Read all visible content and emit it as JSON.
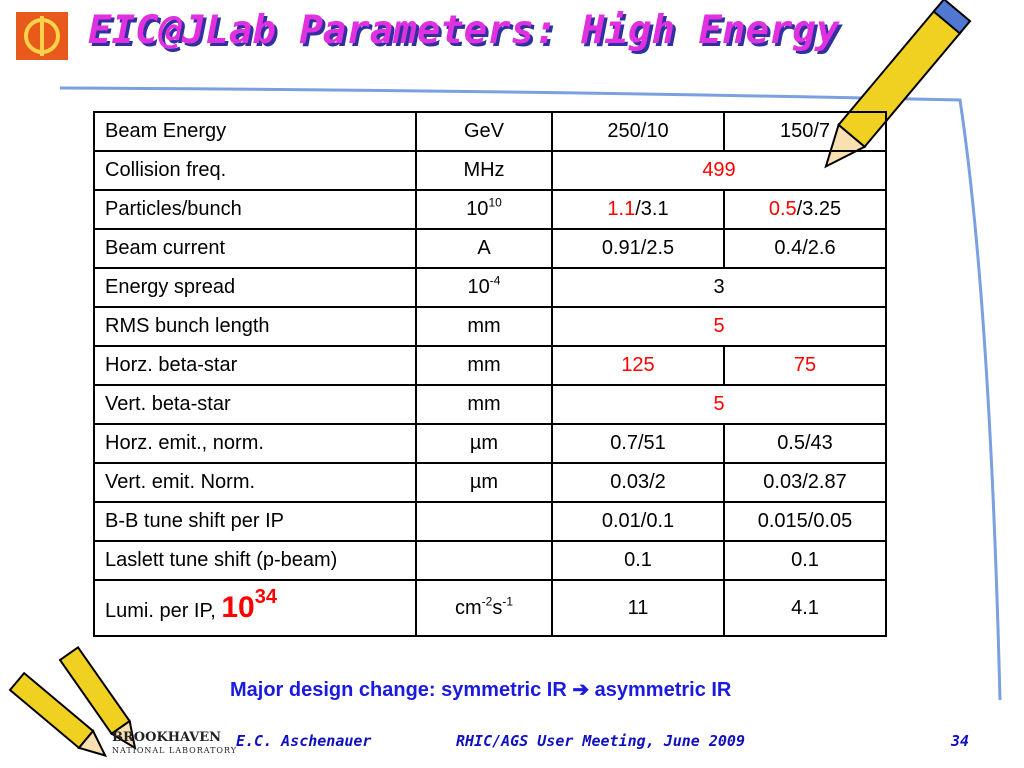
{
  "header": {
    "title": "EIC@JLab Parameters: High Energy"
  },
  "table": {
    "rows": [
      [
        [
          {
            "text": "Beam Energy"
          }
        ],
        [
          {
            "text": "GeV"
          }
        ],
        [
          {
            "text": "250/10"
          }
        ],
        [
          {
            "text": "150/7"
          }
        ]
      ],
      [
        [
          {
            "text": "Collision freq."
          }
        ],
        [
          {
            "text": "MHz"
          }
        ],
        [
          {
            "text": "499",
            "color": "red"
          }
        ]
      ],
      [
        [
          {
            "text": "Particles/bunch"
          }
        ],
        [
          {
            "text": "10"
          },
          {
            "text": "10",
            "sup": true
          }
        ],
        [
          {
            "text": "1.1",
            "color": "red"
          },
          {
            "text": "/3.1"
          }
        ],
        [
          {
            "text": "0.5",
            "color": "red"
          },
          {
            "text": "/3.25"
          }
        ]
      ],
      [
        [
          {
            "text": "Beam current"
          }
        ],
        [
          {
            "text": "A"
          }
        ],
        [
          {
            "text": "0.91/2.5"
          }
        ],
        [
          {
            "text": "0.4/2.6"
          }
        ]
      ],
      [
        [
          {
            "text": "Energy spread"
          }
        ],
        [
          {
            "text": "10"
          },
          {
            "text": "-4",
            "sup": true
          }
        ],
        [
          {
            "text": "3"
          }
        ]
      ],
      [
        [
          {
            "text": "RMS bunch length"
          }
        ],
        [
          {
            "text": "mm"
          }
        ],
        [
          {
            "text": "5",
            "color": "red"
          }
        ]
      ],
      [
        [
          {
            "text": "Horz. beta-star"
          }
        ],
        [
          {
            "text": "mm"
          }
        ],
        [
          {
            "text": "125",
            "color": "red"
          }
        ],
        [
          {
            "text": "75",
            "color": "red"
          }
        ]
      ],
      [
        [
          {
            "text": "Vert. beta-star"
          }
        ],
        [
          {
            "text": "mm"
          }
        ],
        [
          {
            "text": "5",
            "color": "red"
          }
        ]
      ],
      [
        [
          {
            "text": "Horz. emit., norm."
          }
        ],
        [
          {
            "text": "µm"
          }
        ],
        [
          {
            "text": "0.7/51"
          }
        ],
        [
          {
            "text": "0.5/43"
          }
        ]
      ],
      [
        [
          {
            "text": "Vert. emit. Norm."
          }
        ],
        [
          {
            "text": "µm"
          }
        ],
        [
          {
            "text": "0.03/2"
          }
        ],
        [
          {
            "text": "0.03/2.87"
          }
        ]
      ],
      [
        [
          {
            "text": "B-B tune shift per IP"
          }
        ],
        null,
        [
          {
            "text": "0.01/0.1"
          }
        ],
        [
          {
            "text": "0.015/0.05"
          }
        ]
      ],
      [
        [
          {
            "text": "Laslett tune shift (p-beam)"
          }
        ],
        null,
        [
          {
            "text": "0.1"
          }
        ],
        [
          {
            "text": "0.1"
          }
        ]
      ],
      [
        [
          {
            "text": "Lumi. per IP, "
          },
          {
            "text": "10",
            "color": "red",
            "big": true
          },
          {
            "text": "34",
            "color": "red",
            "big": true,
            "sup": true
          }
        ],
        [
          {
            "text": "cm"
          },
          {
            "text": "-2",
            "sup": true
          },
          {
            "text": "s"
          },
          {
            "text": "-1",
            "sup": true
          }
        ],
        [
          {
            "text": "11"
          }
        ],
        [
          {
            "text": "4.1"
          }
        ]
      ]
    ]
  },
  "note": "Major design change: symmetric IR ➔ asymmetric IR",
  "footer": {
    "logo": [
      "BROOKHAVEN",
      "NATIONAL LABORATORY"
    ],
    "author": "E.C. Aschenauer",
    "event": "RHIC/AGS User Meeting, June 2009",
    "page": "34"
  }
}
